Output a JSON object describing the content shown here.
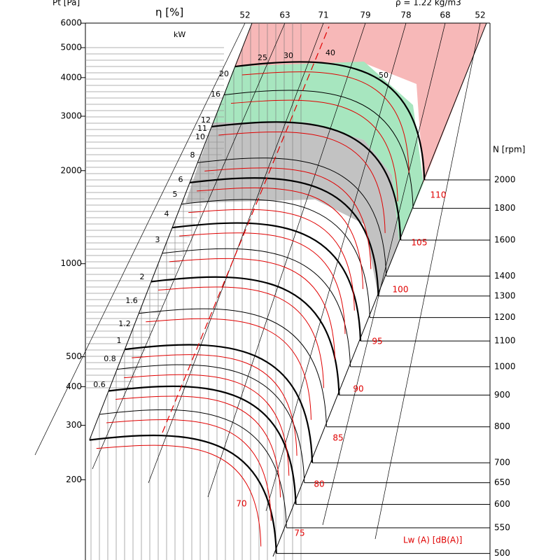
{
  "chart_data": {
    "type": "fan-chart",
    "y_label": "Pt [Pa]",
    "y2_label": "N [rpm]",
    "efficiency_label": "η [%]",
    "power_label": "kW",
    "density_note": "ρ = 1.22 kg/m3",
    "sound_label": "Lw (A)  [dB(A)]",
    "log_scale": true,
    "ylim": [
      110,
      7130
    ],
    "yticks": [
      200,
      300,
      400,
      500,
      1000,
      2000,
      3000,
      4000,
      5000,
      6000
    ],
    "y2lim": [
      488,
      3900
    ],
    "y2ticks": [
      500,
      550,
      600,
      650,
      700,
      800,
      900,
      1000,
      1100,
      1200,
      1300,
      1400,
      1600,
      1800,
      2000
    ],
    "efficiency_values": [
      52,
      63,
      71,
      79,
      78,
      68,
      52
    ],
    "power_values": [
      0.6,
      0.8,
      1,
      1.2,
      1.6,
      2,
      3,
      4,
      5,
      6,
      8,
      10,
      11,
      12,
      16,
      20,
      25,
      30,
      40,
      50
    ],
    "sound_values": [
      70,
      75,
      80,
      85,
      90,
      95,
      100,
      105,
      110
    ]
  }
}
